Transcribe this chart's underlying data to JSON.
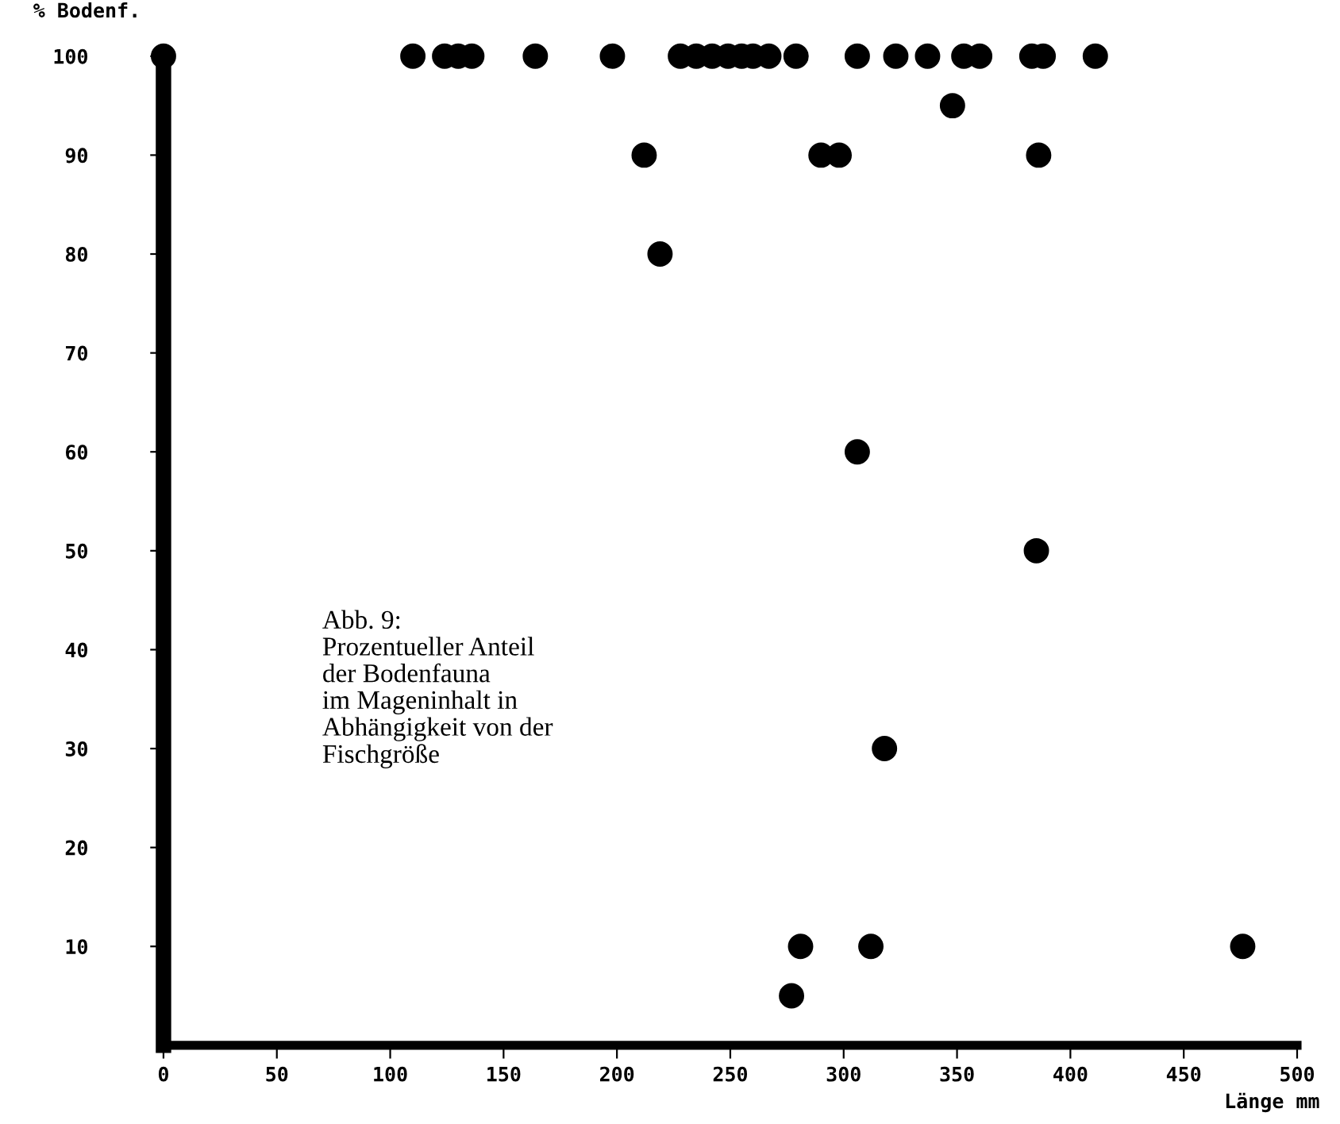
{
  "chart_data": {
    "type": "scatter",
    "ylabel": "% Bodenf.",
    "xlabel": "Länge mm",
    "annotations": [
      "Abb. 9:\nProzentueller Anteil\nder Bodenfauna\nim Mageninhalt in\nAbhängigkeit von der\nFischgröße"
    ],
    "series": [
      {
        "color": "#000000",
        "x": [
          0,
          110,
          124,
          130,
          136,
          164,
          198,
          228,
          235,
          242,
          249,
          255,
          260,
          267,
          279,
          306,
          323,
          337,
          353,
          360,
          383,
          388,
          411,
          348,
          212,
          290,
          298,
          386,
          219,
          306,
          385,
          318,
          277,
          281,
          312,
          476
        ],
        "values": [
          100,
          100,
          100,
          100,
          100,
          100,
          100,
          100,
          100,
          100,
          100,
          100,
          100,
          100,
          100,
          100,
          100,
          100,
          100,
          100,
          100,
          100,
          100,
          95,
          90,
          90,
          90,
          90,
          80,
          60,
          50,
          30,
          5,
          10,
          10,
          10
        ]
      }
    ],
    "xlim": [
      0,
      500
    ],
    "ylim": [
      0,
      100
    ],
    "xticks": [
      0,
      50,
      100,
      150,
      200,
      250,
      300,
      350,
      400,
      450,
      500
    ],
    "yticks": [
      10,
      20,
      30,
      40,
      50,
      60,
      70,
      80,
      90,
      100
    ],
    "marker": "circle",
    "grid": false,
    "legend": false
  }
}
